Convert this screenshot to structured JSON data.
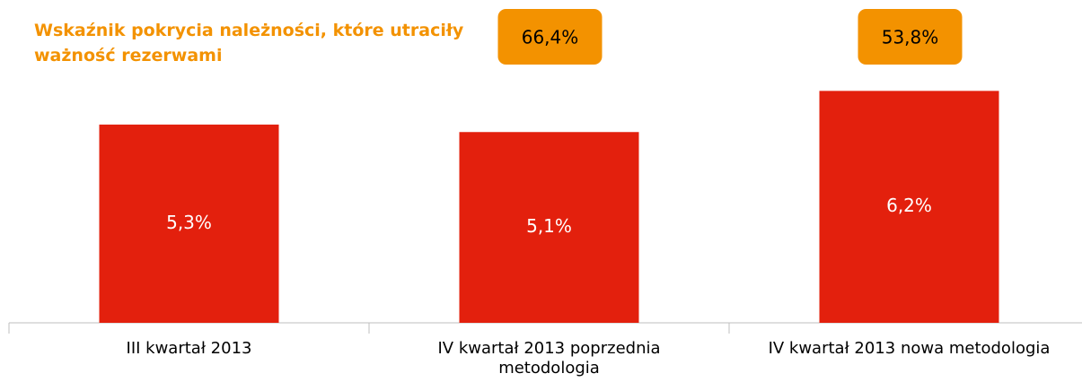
{
  "chart_data": {
    "type": "bar",
    "title": "Wskaźnik pokrycia należności, które utraciły ważność rezerwami",
    "categories": [
      "III kwartał 2013",
      "IV kwartał 2013 poprzednia metodologia",
      "IV kwartał 2013 nowa metodologia"
    ],
    "values": [
      5.3,
      5.1,
      6.2
    ],
    "value_labels": [
      "5,3%",
      "5,1%",
      "6,2%"
    ],
    "color": "#e3200d",
    "ylim": [
      0,
      7
    ],
    "badges": {
      "values": [
        null,
        66.4,
        53.8
      ],
      "value_labels": [
        null,
        "66,4%",
        "53,8%"
      ],
      "color": "#f39200"
    }
  }
}
